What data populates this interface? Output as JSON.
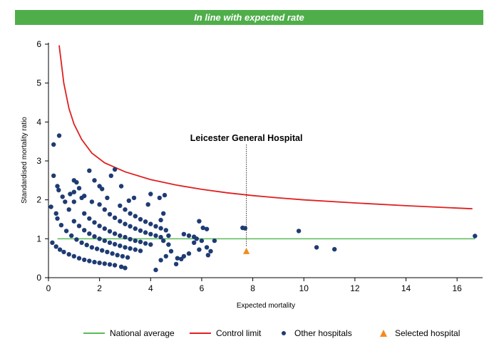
{
  "banner": {
    "text": "In line with expected rate"
  },
  "colors": {
    "banner": "#4fae4a",
    "national_average": "#5bbb57",
    "control_limit": "#e02020",
    "other_hospitals": "#1f3b73",
    "selected_hospital": "#f28c1e"
  },
  "chart_data": {
    "type": "scatter",
    "title": "",
    "xlabel": "Expected mortality",
    "ylabel": "Standardised mortality ratio",
    "xlim": [
      0,
      17
    ],
    "ylim": [
      0,
      6
    ],
    "xticks": [
      "0",
      "2",
      "4",
      "6",
      "8",
      "10",
      "12",
      "14",
      "16"
    ],
    "yticks": [
      "0",
      "1",
      "2",
      "3",
      "4",
      "5",
      "6"
    ],
    "grid": false,
    "legend_position": "bottom",
    "legend": [
      "National average",
      "Control limit",
      "Other hospitals",
      "Selected hospital"
    ],
    "national_average": {
      "name": "National average",
      "y": 1,
      "x_range": [
        0.35,
        16.7
      ]
    },
    "control_limit": {
      "name": "Control limit",
      "points": [
        [
          0.42,
          5.97
        ],
        [
          0.6,
          5.0
        ],
        [
          0.8,
          4.35
        ],
        [
          1.0,
          3.95
        ],
        [
          1.3,
          3.55
        ],
        [
          1.7,
          3.2
        ],
        [
          2.2,
          2.95
        ],
        [
          3.0,
          2.72
        ],
        [
          4.0,
          2.52
        ],
        [
          5.0,
          2.38
        ],
        [
          6.0,
          2.27
        ],
        [
          7.0,
          2.18
        ],
        [
          8.0,
          2.11
        ],
        [
          9.0,
          2.05
        ],
        [
          10.0,
          2.0
        ],
        [
          12.0,
          1.92
        ],
        [
          14.0,
          1.85
        ],
        [
          16.6,
          1.77
        ]
      ]
    },
    "series": [
      {
        "name": "Other hospitals",
        "points": [
          [
            0.2,
            3.42
          ],
          [
            0.42,
            3.65
          ],
          [
            0.2,
            2.62
          ],
          [
            0.35,
            2.35
          ],
          [
            0.4,
            2.25
          ],
          [
            0.55,
            2.08
          ],
          [
            0.65,
            1.95
          ],
          [
            0.85,
            2.15
          ],
          [
            0.1,
            1.82
          ],
          [
            0.3,
            1.65
          ],
          [
            0.35,
            1.52
          ],
          [
            0.8,
            1.75
          ],
          [
            1.0,
            2.5
          ],
          [
            1.1,
            2.45
          ],
          [
            1.2,
            2.3
          ],
          [
            1.0,
            2.2
          ],
          [
            1.3,
            2.05
          ],
          [
            1.6,
            2.75
          ],
          [
            1.8,
            2.5
          ],
          [
            2.0,
            2.35
          ],
          [
            2.1,
            2.28
          ],
          [
            2.45,
            2.62
          ],
          [
            2.6,
            2.78
          ],
          [
            2.85,
            2.35
          ],
          [
            3.15,
            1.98
          ],
          [
            3.35,
            2.05
          ],
          [
            4.0,
            2.15
          ],
          [
            4.55,
            2.12
          ],
          [
            4.35,
            2.05
          ],
          [
            3.9,
            1.88
          ],
          [
            1.0,
            1.95
          ],
          [
            1.4,
            2.1
          ],
          [
            1.7,
            1.95
          ],
          [
            2.3,
            2.05
          ],
          [
            0.15,
            0.9
          ],
          [
            0.3,
            0.8
          ],
          [
            0.45,
            0.72
          ],
          [
            0.6,
            0.66
          ],
          [
            0.8,
            0.6
          ],
          [
            1.0,
            0.55
          ],
          [
            1.2,
            0.5
          ],
          [
            1.4,
            0.46
          ],
          [
            1.6,
            0.43
          ],
          [
            1.8,
            0.4
          ],
          [
            2.0,
            0.38
          ],
          [
            2.2,
            0.36
          ],
          [
            2.4,
            0.34
          ],
          [
            2.6,
            0.32
          ],
          [
            0.5,
            1.35
          ],
          [
            0.7,
            1.2
          ],
          [
            0.9,
            1.08
          ],
          [
            1.1,
            0.98
          ],
          [
            1.3,
            0.9
          ],
          [
            1.5,
            0.84
          ],
          [
            1.7,
            0.78
          ],
          [
            1.9,
            0.74
          ],
          [
            2.1,
            0.7
          ],
          [
            2.3,
            0.66
          ],
          [
            2.5,
            0.62
          ],
          [
            2.7,
            0.58
          ],
          [
            2.9,
            0.55
          ],
          [
            3.1,
            0.52
          ],
          [
            1.0,
            1.45
          ],
          [
            1.2,
            1.33
          ],
          [
            1.4,
            1.22
          ],
          [
            1.6,
            1.13
          ],
          [
            1.8,
            1.06
          ],
          [
            2.0,
            1.0
          ],
          [
            2.2,
            0.95
          ],
          [
            2.4,
            0.9
          ],
          [
            2.6,
            0.86
          ],
          [
            2.8,
            0.82
          ],
          [
            3.0,
            0.78
          ],
          [
            3.2,
            0.75
          ],
          [
            3.4,
            0.72
          ],
          [
            3.6,
            0.69
          ],
          [
            1.4,
            1.65
          ],
          [
            1.6,
            1.52
          ],
          [
            1.8,
            1.42
          ],
          [
            2.0,
            1.33
          ],
          [
            2.2,
            1.26
          ],
          [
            2.4,
            1.19
          ],
          [
            2.6,
            1.13
          ],
          [
            2.8,
            1.08
          ],
          [
            3.0,
            1.04
          ],
          [
            3.2,
            0.99
          ],
          [
            3.4,
            0.95
          ],
          [
            3.6,
            0.92
          ],
          [
            3.8,
            0.88
          ],
          [
            4.0,
            0.85
          ],
          [
            2.0,
            1.88
          ],
          [
            2.2,
            1.75
          ],
          [
            2.4,
            1.63
          ],
          [
            2.6,
            1.54
          ],
          [
            2.8,
            1.45
          ],
          [
            3.0,
            1.38
          ],
          [
            3.2,
            1.32
          ],
          [
            3.4,
            1.26
          ],
          [
            3.6,
            1.21
          ],
          [
            3.8,
            1.16
          ],
          [
            4.0,
            1.12
          ],
          [
            4.2,
            1.08
          ],
          [
            4.4,
            1.04
          ],
          [
            2.8,
            1.85
          ],
          [
            3.0,
            1.75
          ],
          [
            3.2,
            1.65
          ],
          [
            3.4,
            1.58
          ],
          [
            3.6,
            1.5
          ],
          [
            3.8,
            1.44
          ],
          [
            4.0,
            1.38
          ],
          [
            4.2,
            1.32
          ],
          [
            4.4,
            1.27
          ],
          [
            4.6,
            1.22
          ],
          [
            4.5,
            1.65
          ],
          [
            4.4,
            1.48
          ],
          [
            4.7,
            1.08
          ],
          [
            4.5,
            0.95
          ],
          [
            4.7,
            0.85
          ],
          [
            4.8,
            0.68
          ],
          [
            4.6,
            0.55
          ],
          [
            4.4,
            0.45
          ],
          [
            4.2,
            0.2
          ],
          [
            2.85,
            0.28
          ],
          [
            3.0,
            0.25
          ],
          [
            5.3,
            1.12
          ],
          [
            5.5,
            1.08
          ],
          [
            5.7,
            1.05
          ],
          [
            5.9,
            1.45
          ],
          [
            6.05,
            1.28
          ],
          [
            6.2,
            1.25
          ],
          [
            5.8,
            1.0
          ],
          [
            6.0,
            0.95
          ],
          [
            6.5,
            0.95
          ],
          [
            6.2,
            0.78
          ],
          [
            6.35,
            0.68
          ],
          [
            5.9,
            0.72
          ],
          [
            6.25,
            0.58
          ],
          [
            5.5,
            0.62
          ],
          [
            5.3,
            0.55
          ],
          [
            5.05,
            0.5
          ],
          [
            5.0,
            0.35
          ],
          [
            5.2,
            0.48
          ],
          [
            5.7,
            0.9
          ],
          [
            7.6,
            1.28
          ],
          [
            7.7,
            1.27
          ],
          [
            9.8,
            1.2
          ],
          [
            10.5,
            0.78
          ],
          [
            11.2,
            0.73
          ],
          [
            16.7,
            1.07
          ]
        ]
      },
      {
        "name": "Selected hospital",
        "points": [
          [
            7.75,
            0.68
          ]
        ]
      }
    ],
    "annotations": [
      {
        "text": "Leicester General Hospital",
        "x": 7.75
      }
    ]
  }
}
